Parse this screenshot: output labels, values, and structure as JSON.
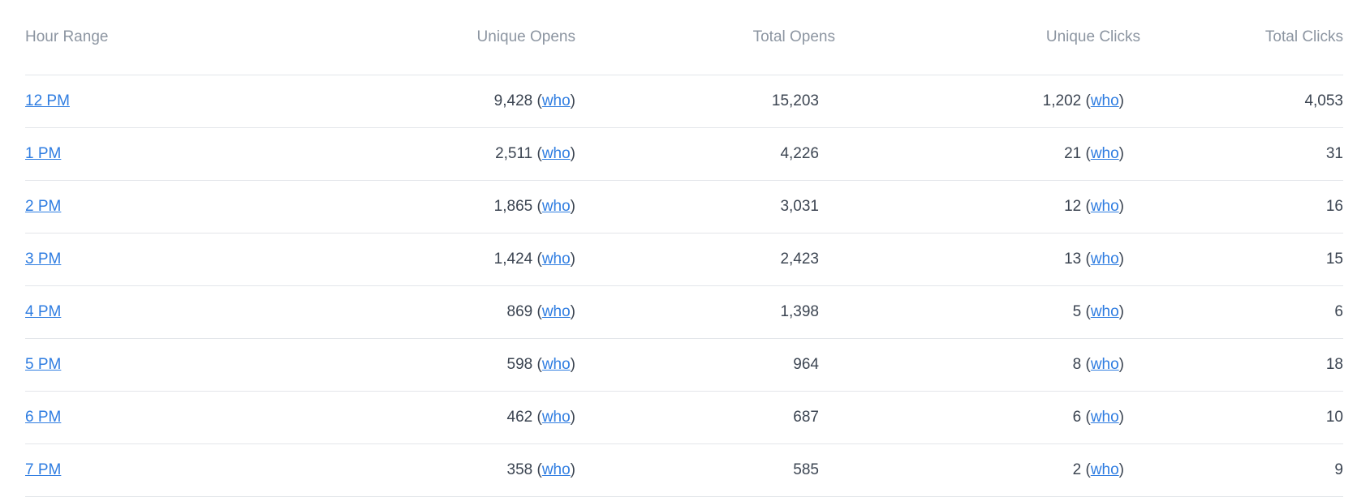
{
  "headers": {
    "hour_range": "Hour Range",
    "unique_opens": "Unique Opens",
    "total_opens": "Total Opens",
    "unique_clicks": "Unique Clicks",
    "total_clicks": "Total Clicks"
  },
  "who_label": "who",
  "rows": [
    {
      "hour": "12 PM",
      "unique_opens": "9,428",
      "total_opens": "15,203",
      "unique_clicks": "1,202",
      "total_clicks": "4,053"
    },
    {
      "hour": "1 PM",
      "unique_opens": "2,511",
      "total_opens": "4,226",
      "unique_clicks": "21",
      "total_clicks": "31"
    },
    {
      "hour": "2 PM",
      "unique_opens": "1,865",
      "total_opens": "3,031",
      "unique_clicks": "12",
      "total_clicks": "16"
    },
    {
      "hour": "3 PM",
      "unique_opens": "1,424",
      "total_opens": "2,423",
      "unique_clicks": "13",
      "total_clicks": "15"
    },
    {
      "hour": "4 PM",
      "unique_opens": "869",
      "total_opens": "1,398",
      "unique_clicks": "5",
      "total_clicks": "6"
    },
    {
      "hour": "5 PM",
      "unique_opens": "598",
      "total_opens": "964",
      "unique_clicks": "8",
      "total_clicks": "18"
    },
    {
      "hour": "6 PM",
      "unique_opens": "462",
      "total_opens": "687",
      "unique_clicks": "6",
      "total_clicks": "10"
    },
    {
      "hour": "7 PM",
      "unique_opens": "358",
      "total_opens": "585",
      "unique_clicks": "2",
      "total_clicks": "9"
    }
  ],
  "colors": {
    "link": "#2f7de1",
    "header_text": "#8c95a1",
    "body_text": "#3b4451",
    "divider": "#e3e6ea"
  }
}
